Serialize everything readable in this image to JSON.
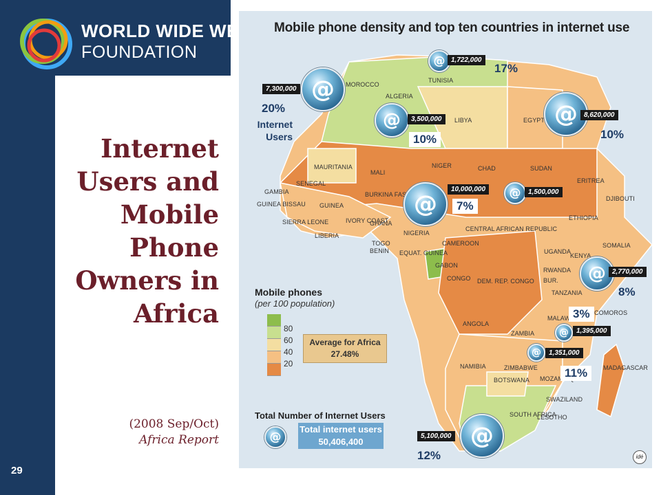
{
  "header": {
    "brand_line1": "WORLD WIDE WEB",
    "brand_line2": "FOUNDATION",
    "logo_colors": [
      "#e23b3b",
      "#f39c12",
      "#8bc53f",
      "#3fa9f5"
    ]
  },
  "slide": {
    "title_lines": [
      "Internet",
      "Users and",
      "Mobile",
      "Phone",
      "Owners in",
      "Africa"
    ],
    "date": "(2008 Sep/Oct)",
    "source": "Africa Report",
    "page_number": "29"
  },
  "map": {
    "title": "Mobile phone density and top ten countries in internet use",
    "internet_users_label": [
      "Internet",
      "Users"
    ],
    "badges": [
      {
        "value": "7,300,000"
      },
      {
        "value": "1,722,000"
      },
      {
        "value": "3,500,000"
      },
      {
        "value": "8,620,000"
      },
      {
        "value": "10,000,000"
      },
      {
        "value": "1,500,000"
      },
      {
        "value": "2,770,000"
      },
      {
        "value": "1,395,000"
      },
      {
        "value": "1,351,000"
      },
      {
        "value": "5,100,000"
      }
    ],
    "percentages": [
      "20%",
      "17%",
      "10%",
      "10%",
      "7%",
      "8%",
      "3%",
      "11%",
      "12%"
    ],
    "country_labels": [
      "MOROCCO",
      "ALGERIA",
      "TUNISIA",
      "LIBYA",
      "EGYPT",
      "MAURITANIA",
      "MALI",
      "NIGER",
      "CHAD",
      "SUDAN",
      "ERITREA",
      "DJIBOUTI",
      "ETHIOPIA",
      "SOMALIA",
      "SENEGAL",
      "GAMBIA",
      "GUINEA BISSAU",
      "GUINEA",
      "SIERRA LEONE",
      "LIBERIA",
      "IVORY COAST",
      "BURKINA FASO",
      "GHANA",
      "TOGO",
      "BENIN",
      "NIGERIA",
      "CAMEROON",
      "CENTRAL AFRICAN REPUBLIC",
      "EQUAT. GUINEA",
      "GABON",
      "CONGO",
      "DEM. REP. CONGO",
      "UGANDA",
      "KENYA",
      "RWANDA",
      "BUR.",
      "TANZANIA",
      "COMOROS",
      "MALAWI",
      "ANGOLA",
      "ZAMBIA",
      "ZIMBABWE",
      "MOZAMBIQUE",
      "MADAGASCAR",
      "NAMIBIA",
      "BOTSWANA",
      "SOUTH AFRICA",
      "SWAZILAND",
      "LESOTHO"
    ]
  },
  "legend": {
    "title": "Mobile phones",
    "subtitle": "(per 100 population)",
    "ticks": [
      "80",
      "60",
      "40",
      "20"
    ],
    "scale_colors": [
      "#8dbd4c",
      "#c8df8f",
      "#f4dea1",
      "#f5c083",
      "#e58a45"
    ],
    "average_label": "Average for Africa",
    "average_value": "27.48%",
    "total_title": "Total Number of Internet Users",
    "total_label": "Total internet users",
    "total_value": "50,406,400",
    "credit": "idé"
  },
  "colors": {
    "navy": "#1b3a61",
    "title": "#6b1f2a",
    "percent": "#1f3d66"
  },
  "icons": [
    "at-icon",
    "foundation-logo"
  ]
}
